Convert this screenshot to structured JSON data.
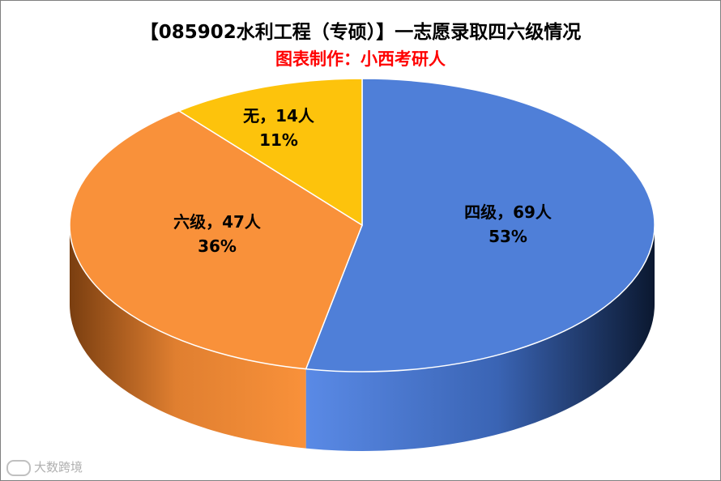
{
  "chart_data": {
    "type": "pie",
    "title": "【085902水利工程（专硕）】一志愿录取四六级情况",
    "subtitle": "图表制作：小西考研人",
    "slices": [
      {
        "name": "四级",
        "count_label": "四级，69人",
        "pct_label": "53%",
        "value": 69,
        "percent": 53,
        "color": "#4f7fd8"
      },
      {
        "name": "六级",
        "count_label": "六级，47人",
        "pct_label": "36%",
        "value": 47,
        "percent": 36,
        "color": "#f9913a"
      },
      {
        "name": "无",
        "count_label": "无，14人",
        "pct_label": "11%",
        "value": 14,
        "percent": 11,
        "color": "#fdc30c"
      }
    ]
  },
  "watermark": {
    "text": "大数跨境",
    "icon": "camera-logo-icon"
  }
}
